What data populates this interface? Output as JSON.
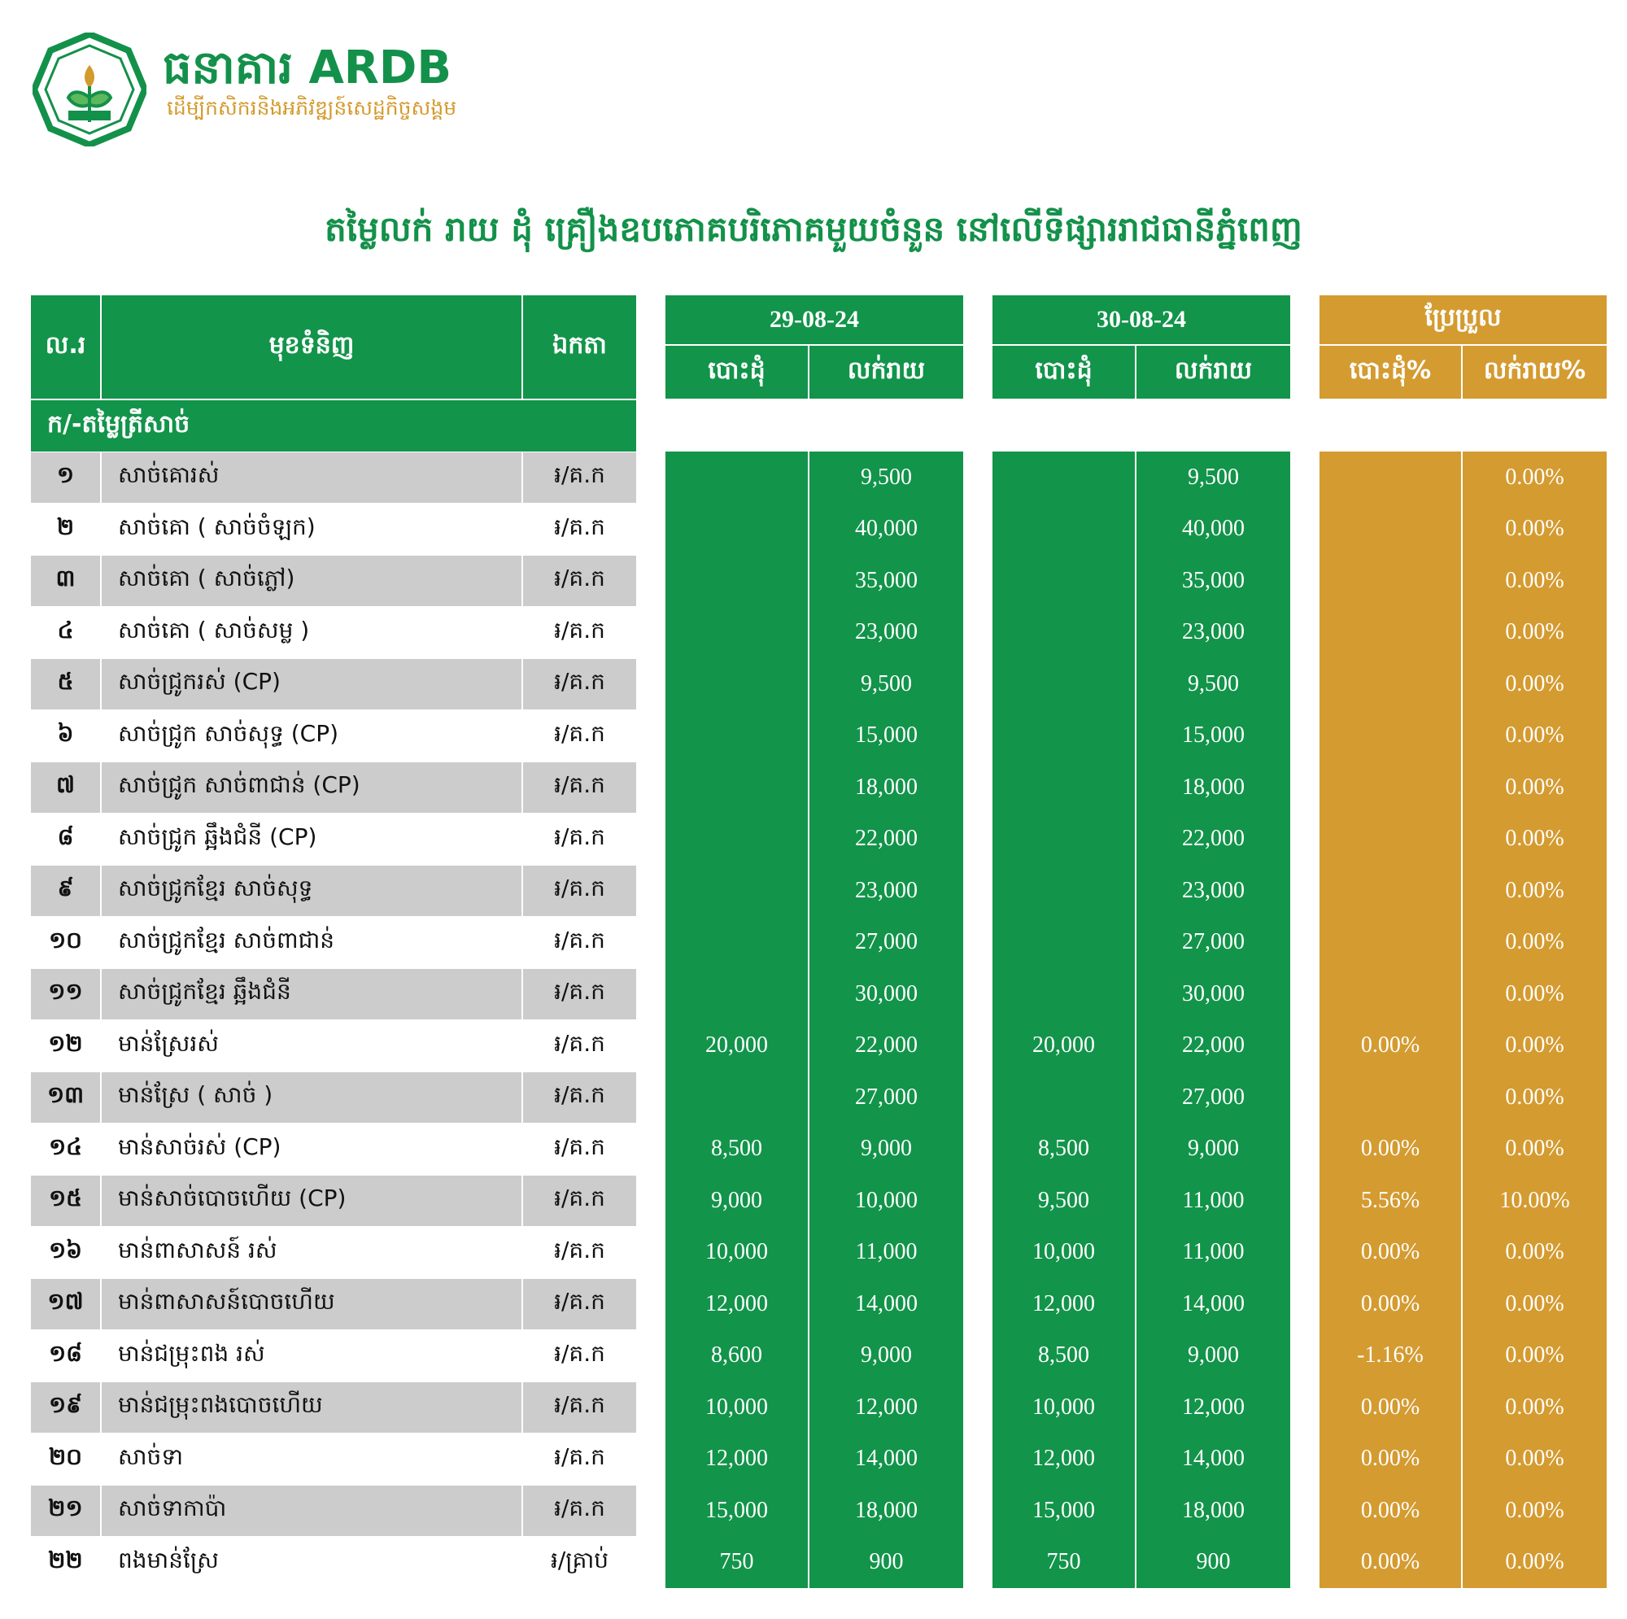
{
  "header": {
    "brand": "ធនាគារ ARDB",
    "tagline": "ដើម្បីកសិករនិងអភិវឌ្ឍន៍សេដ្ឋកិច្ចសង្គម",
    "title": "តម្លៃលក់ រាយ ដុំ គ្រឿងឧបភោគបរិភោគមួយចំនួន នៅលើទីផ្សាររាជធានីភ្នំពេញ"
  },
  "colors": {
    "green": "#12944a",
    "gold": "#d49b31",
    "row_gray": "#cccccc"
  },
  "table": {
    "col_no": "ល.រ",
    "col_item": "មុខទំនិញ",
    "col_unit": "ឯកតា",
    "date1": "29-08-24",
    "date2": "30-08-24",
    "change": "ប្រែប្រួល",
    "wholesale": "បោះដុំ",
    "retail": "លក់រាយ",
    "wholesale_pct": "បោះដុំ%",
    "retail_pct": "លក់រាយ%",
    "section": "ក/-តម្លៃត្រីសាច់",
    "rows": [
      {
        "no": "១",
        "item": "សាច់គោរស់",
        "unit": "៛/គ.ក",
        "w1": "",
        "r1": "9,500",
        "w2": "",
        "r2": "9,500",
        "wp": "",
        "rp": "0.00%"
      },
      {
        "no": "២",
        "item": "សាច់គោ ( សាច់ចំឡក)",
        "unit": "៛/គ.ក",
        "w1": "",
        "r1": "40,000",
        "w2": "",
        "r2": "40,000",
        "wp": "",
        "rp": "0.00%"
      },
      {
        "no": "៣",
        "item": "សាច់គោ ( សាច់ភ្លៅ)",
        "unit": "៛/គ.ក",
        "w1": "",
        "r1": "35,000",
        "w2": "",
        "r2": "35,000",
        "wp": "",
        "rp": "0.00%"
      },
      {
        "no": "៤",
        "item": "សាច់គោ ( សាច់សម្ល )",
        "unit": "៛/គ.ក",
        "w1": "",
        "r1": "23,000",
        "w2": "",
        "r2": "23,000",
        "wp": "",
        "rp": "0.00%"
      },
      {
        "no": "៥",
        "item": "សាច់ជ្រូករស់ (CP)",
        "unit": "៛/គ.ក",
        "w1": "",
        "r1": "9,500",
        "w2": "",
        "r2": "9,500",
        "wp": "",
        "rp": "0.00%"
      },
      {
        "no": "៦",
        "item": "សាច់ជ្រូក សាច់សុទ្ធ (CP)",
        "unit": "៛/គ.ក",
        "w1": "",
        "r1": "15,000",
        "w2": "",
        "r2": "15,000",
        "wp": "",
        "rp": "0.00%"
      },
      {
        "no": "៧",
        "item": "សាច់ជ្រូក សាច់ពាជាន់ (CP)",
        "unit": "៛/គ.ក",
        "w1": "",
        "r1": "18,000",
        "w2": "",
        "r2": "18,000",
        "wp": "",
        "rp": "0.00%"
      },
      {
        "no": "៨",
        "item": "សាច់ជ្រូក ឆ្អឹងជំនី (CP)",
        "unit": "៛/គ.ក",
        "w1": "",
        "r1": "22,000",
        "w2": "",
        "r2": "22,000",
        "wp": "",
        "rp": "0.00%"
      },
      {
        "no": "៩",
        "item": "សាច់ជ្រូកខ្មែរ សាច់សុទ្ធ",
        "unit": "៛/គ.ក",
        "w1": "",
        "r1": "23,000",
        "w2": "",
        "r2": "23,000",
        "wp": "",
        "rp": "0.00%"
      },
      {
        "no": "១០",
        "item": "សាច់ជ្រូកខ្មែរ សាច់ពាជាន់",
        "unit": "៛/គ.ក",
        "w1": "",
        "r1": "27,000",
        "w2": "",
        "r2": "27,000",
        "wp": "",
        "rp": "0.00%"
      },
      {
        "no": "១១",
        "item": "សាច់ជ្រូកខ្មែរ ឆ្អឹងជំនី",
        "unit": "៛/គ.ក",
        "w1": "",
        "r1": "30,000",
        "w2": "",
        "r2": "30,000",
        "wp": "",
        "rp": "0.00%"
      },
      {
        "no": "១២",
        "item": "មាន់ស្រែរស់",
        "unit": "៛/គ.ក",
        "w1": "20,000",
        "r1": "22,000",
        "w2": "20,000",
        "r2": "22,000",
        "wp": "0.00%",
        "rp": "0.00%"
      },
      {
        "no": "១៣",
        "item": "មាន់ស្រែ ( សាច់ )",
        "unit": "៛/គ.ក",
        "w1": "",
        "r1": "27,000",
        "w2": "",
        "r2": "27,000",
        "wp": "",
        "rp": "0.00%"
      },
      {
        "no": "១៤",
        "item": "មាន់សាច់រស់ (CP)",
        "unit": "៛/គ.ក",
        "w1": "8,500",
        "r1": "9,000",
        "w2": "8,500",
        "r2": "9,000",
        "wp": "0.00%",
        "rp": "0.00%"
      },
      {
        "no": "១៥",
        "item": "មាន់សាច់បោចហើយ (CP)",
        "unit": "៛/គ.ក",
        "w1": "9,000",
        "r1": "10,000",
        "w2": "9,500",
        "r2": "11,000",
        "wp": "5.56%",
        "rp": "10.00%"
      },
      {
        "no": "១៦",
        "item": "មាន់ពាសាសន៍ រស់",
        "unit": "៛/គ.ក",
        "w1": "10,000",
        "r1": "11,000",
        "w2": "10,000",
        "r2": "11,000",
        "wp": "0.00%",
        "rp": "0.00%"
      },
      {
        "no": "១៧",
        "item": "មាន់ពាសាសន៍បោចហើយ",
        "unit": "៛/គ.ក",
        "w1": "12,000",
        "r1": "14,000",
        "w2": "12,000",
        "r2": "14,000",
        "wp": "0.00%",
        "rp": "0.00%"
      },
      {
        "no": "១៨",
        "item": "មាន់ជម្រុះពង រស់",
        "unit": "៛/គ.ក",
        "w1": "8,600",
        "r1": "9,000",
        "w2": "8,500",
        "r2": "9,000",
        "wp": "-1.16%",
        "rp": "0.00%"
      },
      {
        "no": "១៩",
        "item": "មាន់ជម្រុះពងបោចហើយ",
        "unit": "៛/គ.ក",
        "w1": "10,000",
        "r1": "12,000",
        "w2": "10,000",
        "r2": "12,000",
        "wp": "0.00%",
        "rp": "0.00%"
      },
      {
        "no": "២០",
        "item": "សាច់ទា",
        "unit": "៛/គ.ក",
        "w1": "12,000",
        "r1": "14,000",
        "w2": "12,000",
        "r2": "14,000",
        "wp": "0.00%",
        "rp": "0.00%"
      },
      {
        "no": "២១",
        "item": "សាច់ទាកាប៉ា",
        "unit": "៛/គ.ក",
        "w1": "15,000",
        "r1": "18,000",
        "w2": "15,000",
        "r2": "18,000",
        "wp": "0.00%",
        "rp": "0.00%"
      },
      {
        "no": "២២",
        "item": "ពងមាន់ស្រែ",
        "unit": "៛/គ្រាប់",
        "w1": "750",
        "r1": "900",
        "w2": "750",
        "r2": "900",
        "wp": "0.00%",
        "rp": "0.00%"
      }
    ]
  }
}
